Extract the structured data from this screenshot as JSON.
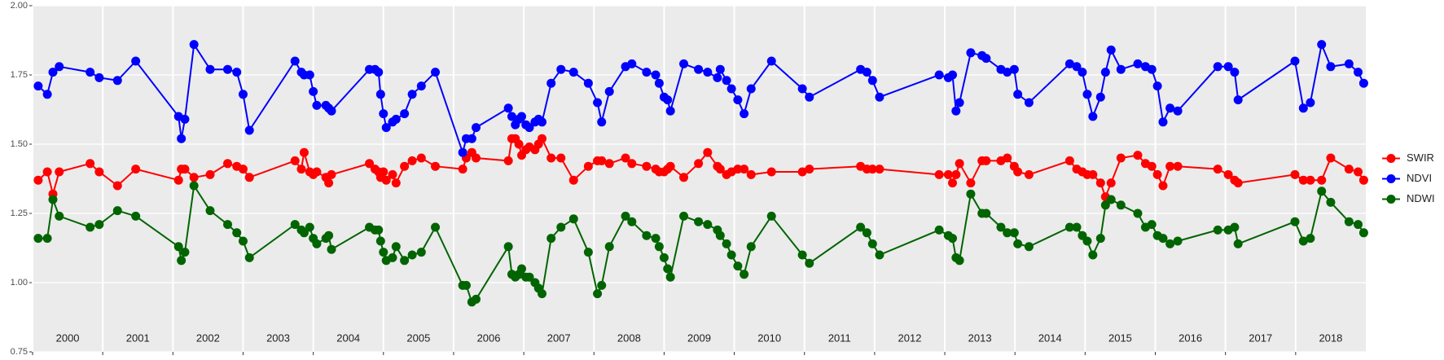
{
  "chart_data": {
    "type": "line",
    "x": [
      2000.08,
      2000.21,
      2000.29,
      2000.38,
      2000.82,
      2000.95,
      2001.21,
      2001.47,
      2002.08,
      2002.12,
      2002.17,
      2002.3,
      2002.53,
      2002.78,
      2002.91,
      2003.0,
      2003.09,
      2003.74,
      2003.83,
      2003.87,
      2003.95,
      2004.0,
      2004.05,
      2004.18,
      2004.22,
      2004.26,
      2004.8,
      2004.88,
      2004.93,
      2004.96,
      2005.0,
      2005.04,
      2005.13,
      2005.18,
      2005.3,
      2005.41,
      2005.54,
      2005.74,
      2006.13,
      2006.18,
      2006.26,
      2006.32,
      2006.78,
      2006.83,
      2006.88,
      2006.93,
      2006.97,
      2007.03,
      2007.08,
      2007.16,
      2007.21,
      2007.26,
      2007.39,
      2007.53,
      2007.71,
      2007.92,
      2008.05,
      2008.11,
      2008.22,
      2008.45,
      2008.54,
      2008.75,
      2008.88,
      2008.93,
      2009.0,
      2009.05,
      2009.09,
      2009.28,
      2009.49,
      2009.62,
      2009.76,
      2009.8,
      2009.89,
      2009.96,
      2010.05,
      2010.14,
      2010.24,
      2010.53,
      2010.97,
      2011.07,
      2011.8,
      2011.89,
      2011.97,
      2012.07,
      2012.92,
      2013.05,
      2013.11,
      2013.16,
      2013.21,
      2013.37,
      2013.53,
      2013.59,
      2013.8,
      2013.89,
      2013.99,
      2014.04,
      2014.2,
      2014.78,
      2014.88,
      2014.96,
      2015.03,
      2015.11,
      2015.22,
      2015.29,
      2015.37,
      2015.51,
      2015.75,
      2015.86,
      2015.95,
      2016.03,
      2016.11,
      2016.21,
      2016.32,
      2016.89,
      2017.04,
      2017.13,
      2017.18,
      2017.99,
      2018.11,
      2018.21,
      2018.37,
      2018.5,
      2018.76,
      2018.89,
      2018.97
    ],
    "series": [
      {
        "name": "SWIR",
        "color": "#ff0000",
        "values": [
          1.37,
          1.4,
          1.32,
          1.4,
          1.43,
          1.4,
          1.35,
          1.41,
          1.37,
          1.41,
          1.41,
          1.38,
          1.39,
          1.43,
          1.42,
          1.41,
          1.38,
          1.44,
          1.41,
          1.47,
          1.4,
          1.39,
          1.4,
          1.38,
          1.36,
          1.39,
          1.43,
          1.41,
          1.4,
          1.38,
          1.4,
          1.37,
          1.39,
          1.36,
          1.42,
          1.44,
          1.45,
          1.42,
          1.41,
          1.45,
          1.47,
          1.45,
          1.44,
          1.52,
          1.52,
          1.5,
          1.46,
          1.48,
          1.49,
          1.48,
          1.5,
          1.52,
          1.45,
          1.45,
          1.37,
          1.42,
          1.44,
          1.44,
          1.43,
          1.45,
          1.43,
          1.42,
          1.41,
          1.4,
          1.4,
          1.41,
          1.42,
          1.38,
          1.43,
          1.47,
          1.42,
          1.41,
          1.39,
          1.4,
          1.41,
          1.41,
          1.39,
          1.4,
          1.4,
          1.41,
          1.42,
          1.41,
          1.41,
          1.41,
          1.39,
          1.39,
          1.36,
          1.39,
          1.43,
          1.36,
          1.44,
          1.44,
          1.44,
          1.45,
          1.42,
          1.4,
          1.39,
          1.44,
          1.41,
          1.4,
          1.39,
          1.39,
          1.36,
          1.31,
          1.36,
          1.45,
          1.46,
          1.43,
          1.42,
          1.39,
          1.35,
          1.42,
          1.42,
          1.41,
          1.39,
          1.37,
          1.36,
          1.39,
          1.37,
          1.37,
          1.37,
          1.45,
          1.41,
          1.4,
          1.37
        ]
      },
      {
        "name": "NDVI",
        "color": "#0000ff",
        "values": [
          1.71,
          1.68,
          1.76,
          1.78,
          1.76,
          1.74,
          1.73,
          1.8,
          1.6,
          1.52,
          1.59,
          1.86,
          1.77,
          1.77,
          1.76,
          1.68,
          1.55,
          1.8,
          1.76,
          1.75,
          1.75,
          1.69,
          1.64,
          1.64,
          1.63,
          1.62,
          1.77,
          1.77,
          1.76,
          1.68,
          1.61,
          1.56,
          1.58,
          1.59,
          1.61,
          1.68,
          1.71,
          1.76,
          1.47,
          1.52,
          1.52,
          1.56,
          1.63,
          1.6,
          1.57,
          1.59,
          1.6,
          1.57,
          1.56,
          1.58,
          1.59,
          1.58,
          1.72,
          1.77,
          1.76,
          1.72,
          1.65,
          1.58,
          1.69,
          1.78,
          1.79,
          1.76,
          1.75,
          1.72,
          1.67,
          1.66,
          1.62,
          1.79,
          1.77,
          1.76,
          1.74,
          1.77,
          1.73,
          1.7,
          1.66,
          1.61,
          1.7,
          1.8,
          1.7,
          1.67,
          1.77,
          1.76,
          1.73,
          1.67,
          1.75,
          1.74,
          1.75,
          1.62,
          1.65,
          1.83,
          1.82,
          1.81,
          1.77,
          1.76,
          1.77,
          1.68,
          1.65,
          1.79,
          1.78,
          1.76,
          1.68,
          1.6,
          1.67,
          1.76,
          1.84,
          1.77,
          1.79,
          1.78,
          1.77,
          1.71,
          1.58,
          1.63,
          1.62,
          1.78,
          1.78,
          1.76,
          1.66,
          1.8,
          1.63,
          1.65,
          1.86,
          1.78,
          1.79,
          1.76,
          1.72
        ]
      },
      {
        "name": "NDWI",
        "color": "#006400",
        "values": [
          1.16,
          1.16,
          1.3,
          1.24,
          1.2,
          1.21,
          1.26,
          1.24,
          1.13,
          1.08,
          1.11,
          1.35,
          1.26,
          1.21,
          1.18,
          1.15,
          1.09,
          1.21,
          1.19,
          1.18,
          1.2,
          1.16,
          1.14,
          1.16,
          1.17,
          1.12,
          1.2,
          1.19,
          1.19,
          1.15,
          1.11,
          1.08,
          1.09,
          1.13,
          1.08,
          1.1,
          1.11,
          1.2,
          0.99,
          0.99,
          0.93,
          0.94,
          1.13,
          1.03,
          1.02,
          1.03,
          1.05,
          1.02,
          1.02,
          1.0,
          0.98,
          0.96,
          1.16,
          1.2,
          1.23,
          1.11,
          0.96,
          0.99,
          1.13,
          1.24,
          1.22,
          1.17,
          1.16,
          1.13,
          1.09,
          1.05,
          1.02,
          1.24,
          1.22,
          1.21,
          1.19,
          1.17,
          1.14,
          1.1,
          1.06,
          1.03,
          1.13,
          1.24,
          1.1,
          1.07,
          1.2,
          1.18,
          1.14,
          1.1,
          1.19,
          1.17,
          1.16,
          1.09,
          1.08,
          1.32,
          1.25,
          1.25,
          1.2,
          1.18,
          1.18,
          1.14,
          1.13,
          1.2,
          1.2,
          1.17,
          1.15,
          1.1,
          1.16,
          1.28,
          1.3,
          1.28,
          1.25,
          1.2,
          1.21,
          1.17,
          1.16,
          1.14,
          1.15,
          1.19,
          1.19,
          1.2,
          1.14,
          1.22,
          1.15,
          1.16,
          1.33,
          1.29,
          1.22,
          1.21,
          1.18
        ]
      }
    ],
    "xlim": [
      2000,
      2019
    ],
    "xticks": [
      2000,
      2001,
      2002,
      2003,
      2004,
      2005,
      2006,
      2007,
      2008,
      2009,
      2010,
      2011,
      2012,
      2013,
      2014,
      2015,
      2016,
      2017,
      2018
    ],
    "ylim": [
      0.75,
      2.0
    ],
    "yticks": [
      {
        "value": 0.75,
        "label": "0.75"
      },
      {
        "value": 1.0,
        "label": "1.00"
      },
      {
        "value": 1.25,
        "label": "1.25"
      },
      {
        "value": 1.5,
        "label": "1.50"
      },
      {
        "value": 1.75,
        "label": "1.75"
      },
      {
        "value": 2.0,
        "label": "2.00"
      }
    ],
    "grid": true,
    "legend": "right"
  }
}
